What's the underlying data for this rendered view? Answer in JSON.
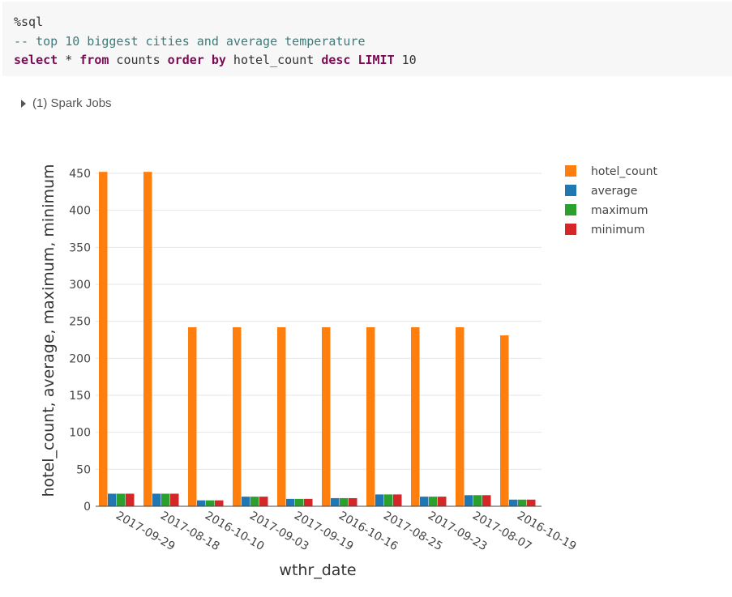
{
  "cell": {
    "lines": [
      {
        "segments": [
          {
            "t": "%sql",
            "cls": "c-plain"
          }
        ]
      },
      {
        "segments": [
          {
            "t": "-- top 10 biggest cities and average temperature",
            "cls": "c-comment"
          }
        ]
      },
      {
        "segments": [
          {
            "t": "select",
            "cls": "c-kw"
          },
          {
            "t": " * ",
            "cls": "c-plain"
          },
          {
            "t": "from",
            "cls": "c-kw"
          },
          {
            "t": " counts ",
            "cls": "c-plain"
          },
          {
            "t": "order by",
            "cls": "c-kw"
          },
          {
            "t": " hotel_count ",
            "cls": "c-plain"
          },
          {
            "t": "desc",
            "cls": "c-kw"
          },
          {
            "t": " ",
            "cls": "c-plain"
          },
          {
            "t": "LIMIT",
            "cls": "c-kw"
          },
          {
            "t": " 10",
            "cls": "c-num"
          }
        ]
      }
    ]
  },
  "jobs": {
    "label": "(1) Spark Jobs"
  },
  "chart_data": {
    "type": "bar",
    "xlabel": "wthr_date",
    "ylabel": "hotel_count, average, maximum, minimum",
    "ylim": [
      0,
      460
    ],
    "yticks": [
      0,
      50,
      100,
      150,
      200,
      250,
      300,
      350,
      400,
      450
    ],
    "grid": true,
    "legend_position": "top-right",
    "categories": [
      "2017-09-29",
      "2017-08-18",
      "2016-10-10",
      "2017-09-03",
      "2017-09-19",
      "2016-10-16",
      "2017-08-25",
      "2017-09-23",
      "2017-08-07",
      "2016-10-19"
    ],
    "series": [
      {
        "name": "hotel_count",
        "color": "#ff7f0e",
        "values": [
          452,
          452,
          242,
          242,
          242,
          242,
          242,
          242,
          242,
          231
        ]
      },
      {
        "name": "average",
        "color": "#1f77b4",
        "values": [
          17,
          17,
          8,
          13,
          10,
          11,
          16,
          13,
          15,
          9
        ]
      },
      {
        "name": "maximum",
        "color": "#2ca02c",
        "values": [
          17,
          17,
          8,
          13,
          10,
          11,
          16,
          13,
          15,
          9
        ]
      },
      {
        "name": "minimum",
        "color": "#d62728",
        "values": [
          17,
          17,
          8,
          13,
          10,
          11,
          16,
          13,
          15,
          9
        ]
      }
    ]
  }
}
